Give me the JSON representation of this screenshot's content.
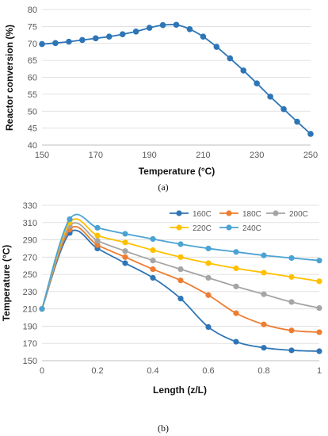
{
  "colors": {
    "panel_a_series": "#2e75b6",
    "grid": "#d9d9d9",
    "axis": "#bfbfbf"
  },
  "chart_data": [
    {
      "type": "line",
      "label": "(a)",
      "xlabel": "Temperature (°C)",
      "ylabel": "Reactor conversion (%)",
      "xlim": [
        150,
        250
      ],
      "ylim": [
        40,
        80
      ],
      "xticks": [
        150,
        170,
        190,
        210,
        230,
        250
      ],
      "yticks": [
        40,
        45,
        50,
        55,
        60,
        65,
        70,
        75,
        80
      ],
      "grid": "horizontal",
      "series": [
        {
          "color": "#2e75b6",
          "x": [
            150,
            155,
            160,
            165,
            170,
            175,
            180,
            185,
            190,
            195,
            200,
            205,
            210,
            215,
            220,
            225,
            230,
            235,
            240,
            245,
            250
          ],
          "y": [
            69.8,
            70.1,
            70.5,
            71.0,
            71.5,
            72.0,
            72.7,
            73.5,
            74.6,
            75.4,
            75.5,
            74.2,
            72.0,
            69.0,
            65.6,
            62.0,
            58.2,
            54.3,
            50.6,
            46.9,
            43.3
          ]
        }
      ]
    },
    {
      "type": "line",
      "label": "(b)",
      "xlabel": "Length (z/L)",
      "ylabel": "Temperature (°C)",
      "xlim": [
        0,
        1
      ],
      "ylim": [
        150,
        330
      ],
      "xticks": [
        0,
        0.2,
        0.4,
        0.6,
        0.8,
        1
      ],
      "yticks": [
        150,
        170,
        190,
        210,
        230,
        250,
        270,
        290,
        310,
        330
      ],
      "grid": "horizontal",
      "legend": "top-right",
      "x": [
        0,
        0.1,
        0.2,
        0.3,
        0.4,
        0.5,
        0.6,
        0.7,
        0.8,
        0.9,
        1
      ],
      "series": [
        {
          "name": "160C",
          "color": "#2e75b6",
          "values": [
            210,
            298,
            280,
            263,
            246,
            222,
            189,
            172,
            165,
            162,
            161
          ]
        },
        {
          "name": "180C",
          "color": "#ed7d31",
          "values": [
            210,
            302,
            284,
            270,
            256,
            243,
            226,
            205,
            192,
            185,
            183
          ]
        },
        {
          "name": "200C",
          "color": "#a5a5a5",
          "values": [
            210,
            306,
            289,
            277,
            266,
            256,
            246,
            236,
            227,
            218,
            211
          ]
        },
        {
          "name": "220C",
          "color": "#ffc000",
          "values": [
            210,
            310,
            295,
            287,
            278,
            270,
            263,
            257,
            252,
            247,
            242
          ]
        },
        {
          "name": "240C",
          "color": "#4ba3d3",
          "values": [
            210,
            314,
            304,
            297,
            291,
            285,
            280,
            276,
            272,
            269,
            266
          ]
        }
      ]
    }
  ]
}
